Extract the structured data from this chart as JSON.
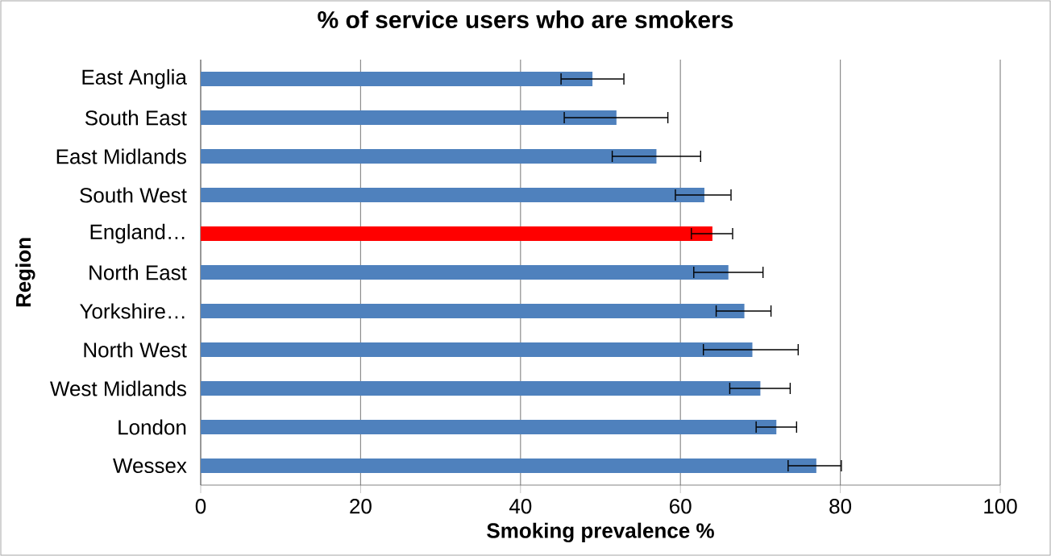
{
  "chart_data": {
    "type": "bar",
    "orientation": "horizontal",
    "title": "% of service users who are smokers",
    "xlabel": "Smoking prevalence %",
    "ylabel": "Region",
    "categories": [
      "East Anglia",
      "South East",
      "East Midlands",
      "South West",
      "England…",
      "North East",
      "Yorkshire…",
      "North West",
      "West Midlands",
      "London",
      "Wessex"
    ],
    "values": [
      49,
      52,
      57,
      63,
      64,
      66,
      68,
      69,
      70,
      72,
      77
    ],
    "colors": [
      "#4f81bd",
      "#4f81bd",
      "#4f81bd",
      "#4f81bd",
      "#ff0000",
      "#4f81bd",
      "#4f81bd",
      "#4f81bd",
      "#4f81bd",
      "#4f81bd",
      "#4f81bd"
    ],
    "errors": [
      [
        45,
        53
      ],
      [
        45.4,
        58.5
      ],
      [
        51.4,
        62.6
      ],
      [
        59.3,
        66.4
      ],
      [
        61.3,
        66.6
      ],
      [
        61.6,
        70.4
      ],
      [
        64.4,
        71.4
      ],
      [
        62.8,
        74.8
      ],
      [
        66.1,
        73.8
      ],
      [
        69.4,
        74.6
      ],
      [
        73.4,
        80.2
      ]
    ],
    "xlim": [
      0,
      100
    ],
    "xticks": [
      0,
      20,
      40,
      60,
      80,
      100
    ],
    "grid": "x"
  }
}
